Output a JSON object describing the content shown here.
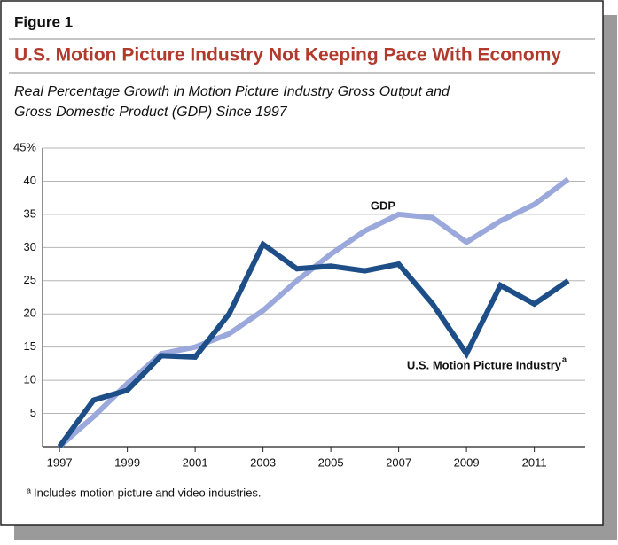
{
  "chart_data": {
    "type": "line",
    "figure_label": "Figure 1",
    "title": "U.S. Motion Picture Industry Not Keeping Pace With Economy",
    "subtitle": [
      "Real Percentage Growth in Motion Picture Industry Gross Output and",
      "Gross Domestic Product (GDP) Since 1997"
    ],
    "x": [
      1997,
      1998,
      1999,
      2000,
      2001,
      2002,
      2003,
      2004,
      2005,
      2006,
      2007,
      2008,
      2009,
      2010,
      2011,
      2012
    ],
    "series": [
      {
        "name": "GDP",
        "color": "#9aa8db",
        "values": [
          0,
          4.5,
          9.5,
          14,
          15,
          17,
          20.5,
          25,
          29,
          32.5,
          35,
          34.5,
          30.8,
          34,
          36.5,
          40.3
        ]
      },
      {
        "name": "U.S. Motion Picture Industry",
        "color": "#1d4e88",
        "values": [
          0,
          7,
          8.5,
          13.7,
          13.5,
          20,
          30.5,
          26.8,
          27.2,
          26.5,
          27.5,
          21.5,
          14,
          24.3,
          21.5,
          25
        ]
      }
    ],
    "xlim": [
      1996.5,
      2012.5
    ],
    "xticks": [
      1997,
      1999,
      2001,
      2003,
      2005,
      2007,
      2009,
      2011
    ],
    "ylim": [
      0,
      45
    ],
    "yticks": [
      {
        "value": 45,
        "label": "45%"
      },
      40,
      35,
      30,
      25,
      20,
      15,
      10,
      5
    ],
    "grid": true,
    "footnote_marker": "a",
    "footnote": "Includes motion picture and video industries."
  }
}
